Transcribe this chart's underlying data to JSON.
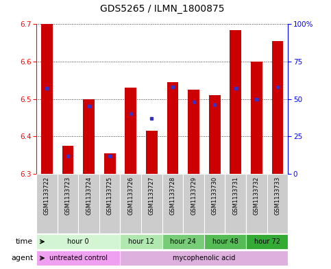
{
  "title": "GDS5265 / ILMN_1800875",
  "samples": [
    "GSM1133722",
    "GSM1133723",
    "GSM1133724",
    "GSM1133725",
    "GSM1133726",
    "GSM1133727",
    "GSM1133728",
    "GSM1133729",
    "GSM1133730",
    "GSM1133731",
    "GSM1133732",
    "GSM1133733"
  ],
  "transformed_count": [
    6.7,
    6.375,
    6.5,
    6.355,
    6.53,
    6.415,
    6.545,
    6.525,
    6.51,
    6.685,
    6.6,
    6.655
  ],
  "percentile_rank": [
    57,
    12,
    45,
    12,
    40,
    37,
    58,
    48,
    46,
    57,
    50,
    58
  ],
  "ylim_left": [
    6.3,
    6.7
  ],
  "ylim_right": [
    0,
    100
  ],
  "yticks_left": [
    6.3,
    6.4,
    6.5,
    6.6,
    6.7
  ],
  "yticks_right": [
    0,
    25,
    50,
    75,
    100
  ],
  "bar_color": "#cc0000",
  "percentile_color": "#3333cc",
  "time_groups": [
    {
      "label": "hour 0",
      "samples": [
        0,
        1,
        2,
        3
      ],
      "color": "#d4f5d4"
    },
    {
      "label": "hour 12",
      "samples": [
        4,
        5
      ],
      "color": "#b0e8b0"
    },
    {
      "label": "hour 24",
      "samples": [
        6,
        7
      ],
      "color": "#77cc77"
    },
    {
      "label": "hour 48",
      "samples": [
        8,
        9
      ],
      "color": "#55bb55"
    },
    {
      "label": "hour 72",
      "samples": [
        10,
        11
      ],
      "color": "#33aa33"
    }
  ],
  "agent_groups": [
    {
      "label": "untreated control",
      "samples": [
        0,
        1,
        2,
        3
      ],
      "color": "#f0a0f0"
    },
    {
      "label": "mycophenolic acid",
      "samples": [
        4,
        5,
        6,
        7,
        8,
        9,
        10,
        11
      ],
      "color": "#ddb0dd"
    }
  ],
  "tick_fontsize": 7.5,
  "sample_label_fontsize": 6.0,
  "bar_width": 0.55,
  "bg_color": "#ffffff",
  "grid_color": "#333333",
  "sample_bg_color": "#cccccc"
}
